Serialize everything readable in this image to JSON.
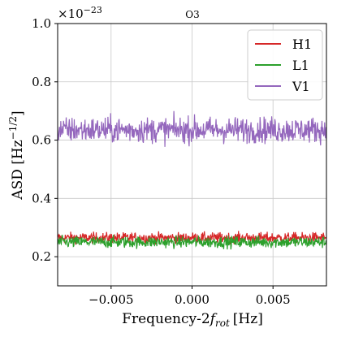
{
  "chart_data": {
    "type": "line",
    "title": "O3",
    "xlabel": "Frequency-2f_rot [Hz]",
    "xlabel_parts": {
      "main": "Frequency-2",
      "f": "f",
      "sub": "rot",
      "unit": "[Hz]"
    },
    "ylabel": "ASD [Hz^-1/2]",
    "ylabel_parts": {
      "main": "ASD [Hz",
      "sup": "−1/2",
      "close": "]"
    },
    "y_multiplier": "×10⁻²³",
    "y_multiplier_parts": {
      "base": "×10",
      "exp": "−23"
    },
    "xlim": [
      -0.0083,
      0.0083
    ],
    "ylim": [
      0.1,
      1.0
    ],
    "xticks": [
      -0.005,
      0.0,
      0.005
    ],
    "xtick_labels": [
      "−0.005",
      "0.000",
      "0.005"
    ],
    "yticks": [
      0.2,
      0.4,
      0.6,
      0.8,
      1.0
    ],
    "ytick_labels": [
      "0.2",
      "0.4",
      "0.6",
      "0.8",
      "1.0"
    ],
    "grid": true,
    "legend_position": "top-right",
    "series": [
      {
        "name": "H1",
        "color": "#d62728",
        "mean": 0.265,
        "noise": 0.009,
        "points": 600
      },
      {
        "name": "L1",
        "color": "#2ca02c",
        "mean": 0.25,
        "noise": 0.01,
        "points": 600
      },
      {
        "name": "V1",
        "color": "#9467bd",
        "mean": 0.635,
        "noise": 0.022,
        "points": 600
      }
    ]
  }
}
